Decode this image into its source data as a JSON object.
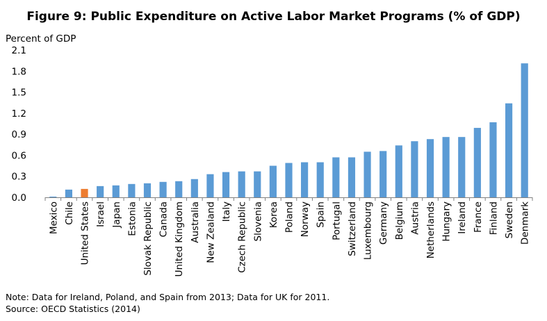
{
  "chart_data": {
    "type": "bar",
    "title": "Figure 9: Public Expenditure on Active Labor Market Programs (% of GDP)",
    "ylabel": "Percent of GDP",
    "xlabel": "",
    "ylim": [
      0,
      2.1
    ],
    "yticks": [
      "0.0",
      "0.3",
      "0.6",
      "0.9",
      "1.2",
      "1.5",
      "1.8",
      "2.1"
    ],
    "grid": false,
    "categories": [
      "Mexico",
      "Chile",
      "United States",
      "Israel",
      "Japan",
      "Estonia",
      "Slovak Republic",
      "Canada",
      "United Kingdom",
      "Australia",
      "New Zealand",
      "Italy",
      "Czech Republic",
      "Slovenia",
      "Korea",
      "Poland",
      "Norway",
      "Spain",
      "Portugal",
      "Switzerland",
      "Luxembourg",
      "Germany",
      "Belgium",
      "Austria",
      "Netherlands",
      "Hungary",
      "Ireland",
      "France",
      "Finland",
      "Sweden",
      "Denmark"
    ],
    "values": [
      0.01,
      0.11,
      0.12,
      0.16,
      0.17,
      0.19,
      0.2,
      0.22,
      0.23,
      0.26,
      0.33,
      0.36,
      0.37,
      0.37,
      0.45,
      0.49,
      0.5,
      0.5,
      0.57,
      0.57,
      0.65,
      0.66,
      0.74,
      0.8,
      0.83,
      0.86,
      0.86,
      0.99,
      1.07,
      1.34,
      1.91
    ],
    "highlight_category": "United States",
    "colors": {
      "default": "#5b9bd5",
      "highlight": "#ed7d31"
    }
  },
  "notes": {
    "note": "Note: Data for Ireland, Poland, and Spain from 2013; Data for UK for 2011.",
    "source": "Source: OECD Statistics (2014)"
  }
}
